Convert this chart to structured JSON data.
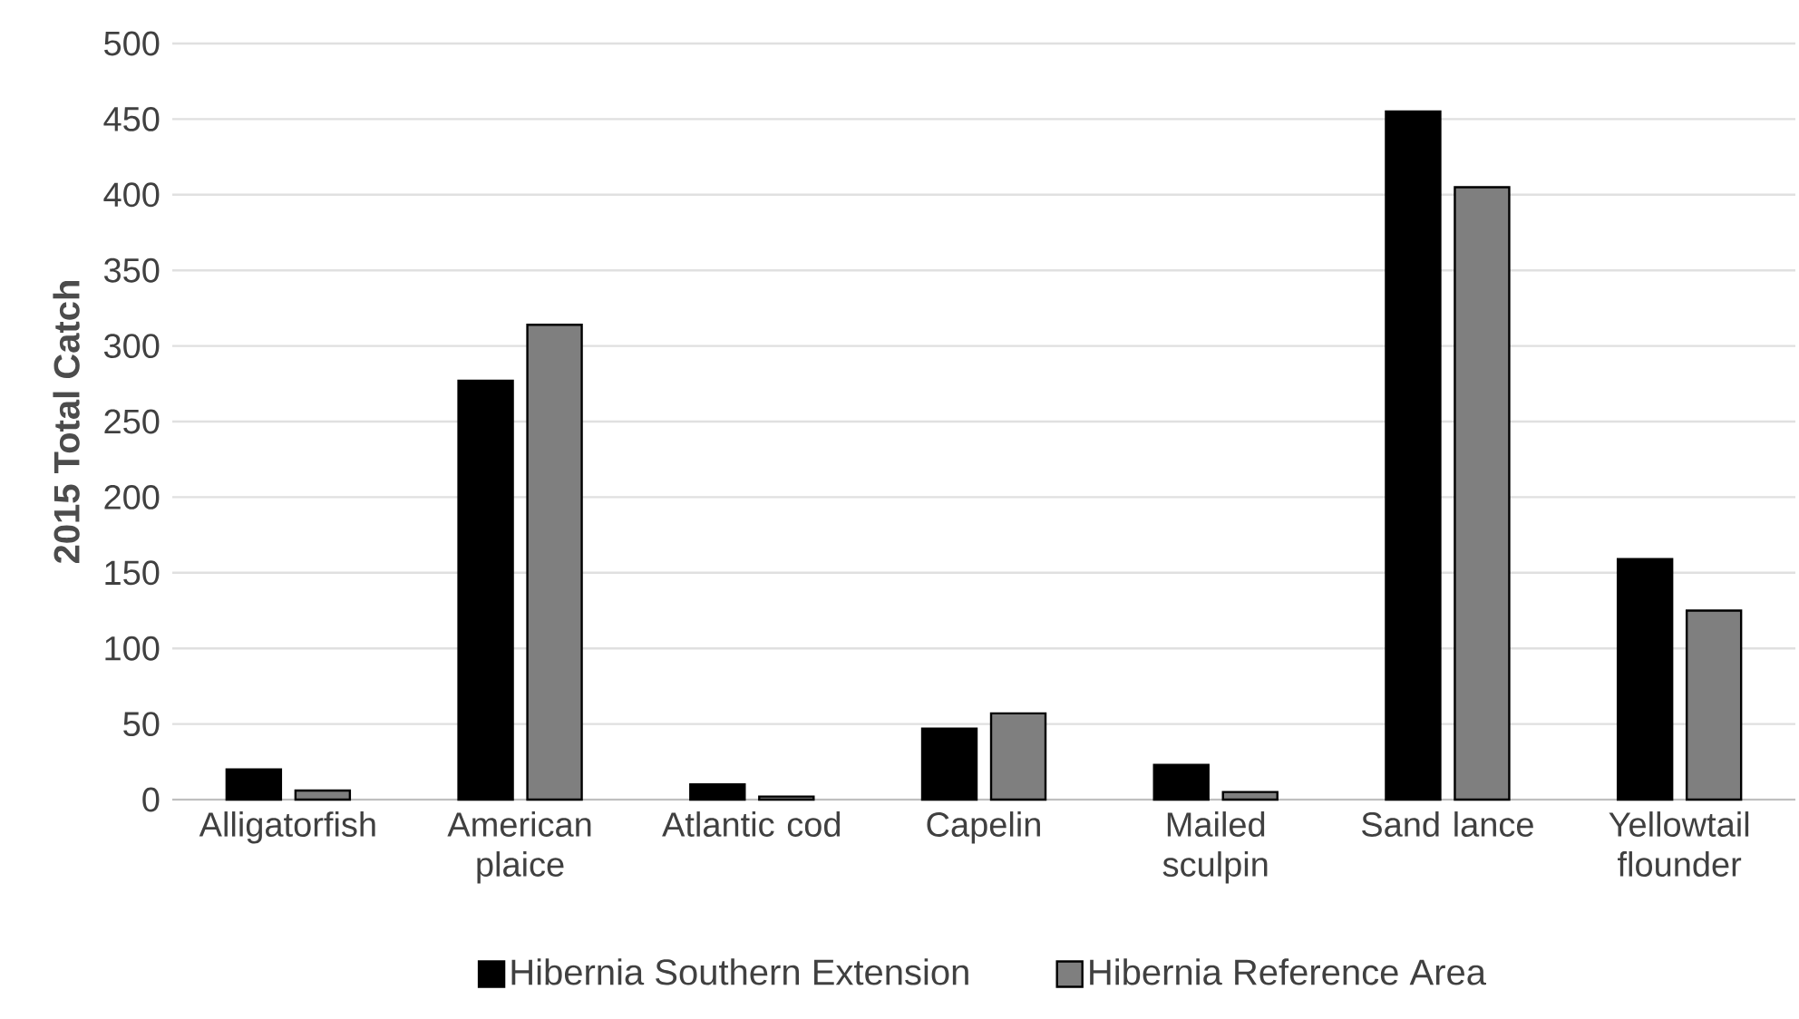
{
  "chart_data": {
    "type": "bar",
    "ylabel": "2015 Total Catch",
    "categories": [
      "Alligatorfish",
      "American plaice",
      "Atlantic cod",
      "Capelin",
      "Mailed sculpin",
      "Sand lance",
      "Yellowtail flounder"
    ],
    "series": [
      {
        "name": "Hibernia Southern Extension",
        "color": "#000000",
        "values": [
          20,
          277,
          10,
          47,
          23,
          455,
          159
        ]
      },
      {
        "name": "Hibernia Reference Area",
        "color": "#7f7f7f",
        "values": [
          6,
          314,
          2,
          57,
          5,
          405,
          125
        ]
      }
    ],
    "ylim": [
      0,
      500
    ],
    "yticks": [
      0,
      50,
      100,
      150,
      200,
      250,
      300,
      350,
      400,
      450,
      500
    ],
    "grid": "y",
    "legend": "bottom"
  }
}
